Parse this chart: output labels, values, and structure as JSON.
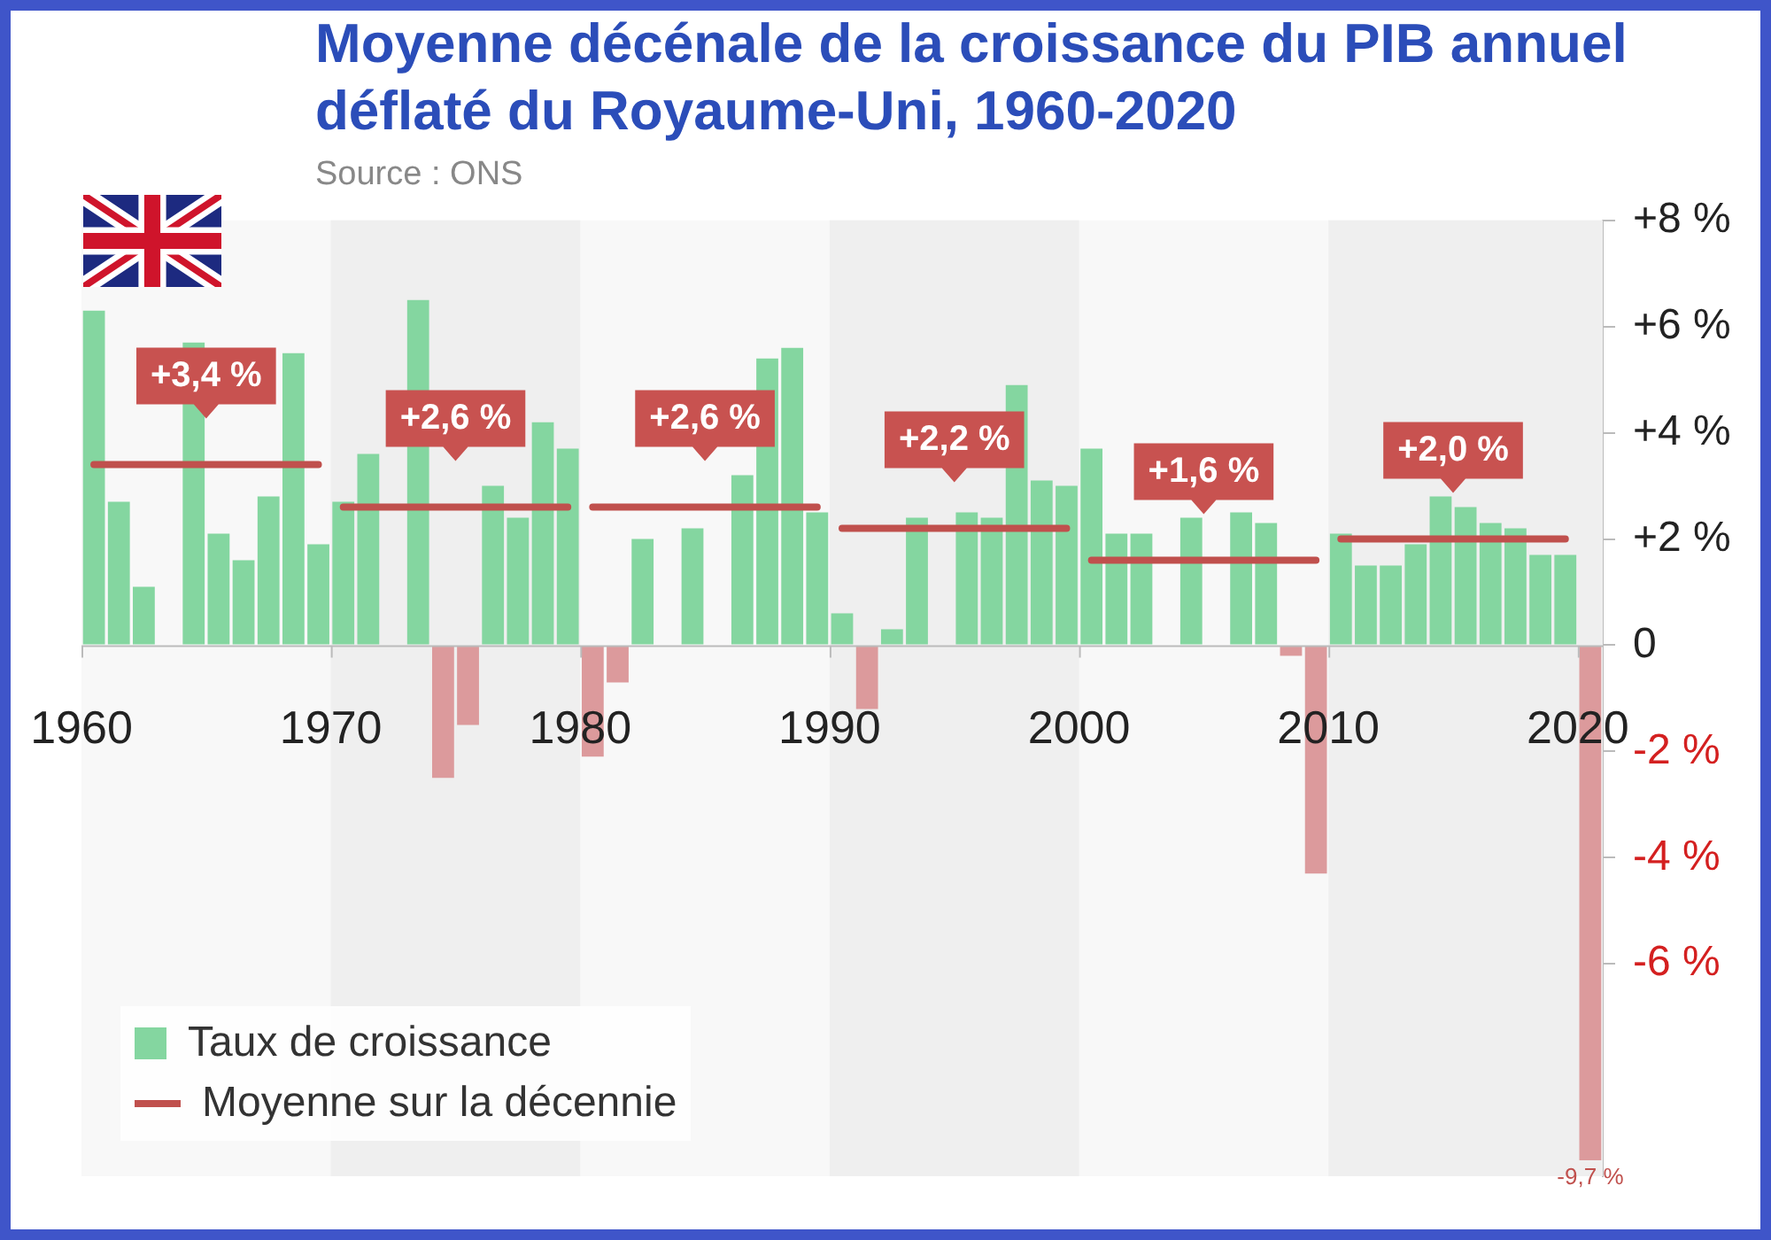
{
  "chart_data": {
    "type": "bar",
    "title": "Moyenne décénale de la croissance du PIB annuel déflaté du Royaume-Uni, 1960-2020",
    "annotations": [
      "Source : ONS",
      {
        "text": "+3,4 %",
        "x": 1964.5,
        "y": 3.4
      },
      {
        "text": "+2,6 %",
        "x": 1974.5,
        "y": 2.6
      },
      {
        "text": "+2,6 %",
        "x": 1984.5,
        "y": 2.6
      },
      {
        "text": "+2,2 %",
        "x": 1994.5,
        "y": 2.2
      },
      {
        "text": "+1,6 %",
        "x": 2004.5,
        "y": 1.6
      },
      {
        "text": "+2,0 %",
        "x": 2014.5,
        "y": 2.0
      }
    ],
    "x": [
      1960,
      1961,
      1962,
      1963,
      1964,
      1965,
      1966,
      1967,
      1968,
      1969,
      1970,
      1971,
      1972,
      1973,
      1974,
      1975,
      1976,
      1977,
      1978,
      1979,
      1980,
      1981,
      1982,
      1983,
      1984,
      1985,
      1986,
      1987,
      1988,
      1989,
      1990,
      1991,
      1992,
      1993,
      1994,
      1995,
      1996,
      1997,
      1998,
      1999,
      2000,
      2001,
      2002,
      2003,
      2004,
      2005,
      2006,
      2007,
      2008,
      2009,
      2010,
      2011,
      2012,
      2013,
      2014,
      2015,
      2016,
      2017,
      2018,
      2019,
      2020
    ],
    "xlim": [
      1959.5,
      2020.5
    ],
    "xticks": [
      {
        "value": 1959.5,
        "label": "1960"
      },
      {
        "value": 1969.5,
        "label": "1970"
      },
      {
        "value": 1979.5,
        "label": "1980"
      },
      {
        "value": 1989.5,
        "label": "1990"
      },
      {
        "value": 1999.5,
        "label": "2000"
      },
      {
        "value": 2009.5,
        "label": "2010"
      },
      {
        "value": 2019.5,
        "label": "2020"
      }
    ],
    "ylim": [
      -10,
      8
    ],
    "yticks": [
      {
        "value": -6,
        "label": "-6 %"
      },
      {
        "value": -4,
        "label": "-4 %"
      },
      {
        "value": -2,
        "label": "-2 %"
      },
      0,
      {
        "value": 2,
        "label": "+2 %"
      },
      {
        "value": 4,
        "label": "+4 %"
      },
      {
        "value": 6,
        "label": "+6 %"
      },
      {
        "value": 8,
        "label": "+8 %"
      }
    ],
    "bands": [
      {
        "axis": "x",
        "from": 1969.5,
        "to": 1979.5,
        "color": "#efefef"
      },
      {
        "axis": "x",
        "from": 1989.5,
        "to": 1999.5,
        "color": "#efefef"
      },
      {
        "axis": "x",
        "from": 2009.5,
        "to": 2020.5,
        "color": "#efefef"
      }
    ],
    "legend": "bottom left",
    "grid": false,
    "series": [
      {
        "name": "Taux de croissance",
        "color": "#84d6a0",
        "colors": [
          "#84d6a0",
          "#84d6a0",
          "#84d6a0",
          "#84d6a0",
          "#84d6a0",
          "#84d6a0",
          "#84d6a0",
          "#84d6a0",
          "#84d6a0",
          "#84d6a0",
          "#84d6a0",
          "#84d6a0",
          "#84d6a0",
          "#84d6a0",
          "#dc9a9c",
          "#dc9a9c",
          "#84d6a0",
          "#84d6a0",
          "#84d6a0",
          "#84d6a0",
          "#dc9a9c",
          "#dc9a9c",
          "#84d6a0",
          "#84d6a0",
          "#84d6a0",
          "#84d6a0",
          "#84d6a0",
          "#84d6a0",
          "#84d6a0",
          "#84d6a0",
          "#84d6a0",
          "#dc9a9c",
          "#84d6a0",
          "#84d6a0",
          "#84d6a0",
          "#84d6a0",
          "#84d6a0",
          "#84d6a0",
          "#84d6a0",
          "#84d6a0",
          "#84d6a0",
          "#84d6a0",
          "#84d6a0",
          "#84d6a0",
          "#84d6a0",
          "#84d6a0",
          "#84d6a0",
          "#84d6a0",
          "#dc9a9c",
          "#dc9a9c",
          "#84d6a0",
          "#84d6a0",
          "#84d6a0",
          "#84d6a0",
          "#84d6a0",
          "#84d6a0",
          "#84d6a0",
          "#84d6a0",
          "#84d6a0",
          "#84d6a0",
          "#dc9a9c"
        ],
        "values": [
          6.3,
          2.7,
          1.1,
          null,
          5.7,
          2.1,
          1.6,
          2.8,
          5.5,
          1.9,
          2.7,
          3.6,
          null,
          6.5,
          -2.5,
          -1.5,
          3.0,
          2.4,
          4.2,
          3.7,
          -2.1,
          -0.7,
          2.0,
          null,
          2.2,
          null,
          3.2,
          5.4,
          5.6,
          2.5,
          0.6,
          -1.2,
          0.3,
          2.4,
          null,
          2.5,
          2.4,
          4.9,
          3.1,
          3.0,
          3.7,
          2.1,
          2.1,
          null,
          2.4,
          null,
          2.5,
          2.3,
          -0.2,
          -4.3,
          2.1,
          1.5,
          1.5,
          1.9,
          2.8,
          2.6,
          2.3,
          2.2,
          1.7,
          1.7,
          -9.7
        ],
        "value_labels": [
          null,
          null,
          null,
          null,
          null,
          null,
          null,
          null,
          null,
          null,
          null,
          null,
          null,
          null,
          null,
          null,
          null,
          null,
          null,
          null,
          null,
          null,
          null,
          null,
          null,
          null,
          null,
          null,
          null,
          null,
          null,
          null,
          null,
          null,
          null,
          null,
          null,
          null,
          null,
          null,
          null,
          null,
          null,
          null,
          null,
          null,
          null,
          null,
          null,
          null,
          null,
          null,
          null,
          null,
          null,
          null,
          null,
          null,
          null,
          null,
          "-9,7 %"
        ]
      },
      {
        "name": "Moyenne sur la décennie",
        "type": "line",
        "color": "#c0504d",
        "x": [
          1960,
          1969,
          1969.5,
          1970,
          1979,
          1979.5,
          1980,
          1989,
          1989.5,
          1990,
          1999,
          1999.5,
          2000,
          2009,
          2009.5,
          2010,
          2019
        ],
        "values": [
          3.4,
          3.4,
          null,
          2.6,
          2.6,
          null,
          2.6,
          2.6,
          null,
          2.2,
          2.2,
          null,
          1.6,
          1.6,
          null,
          2.0,
          2.0
        ]
      }
    ]
  }
}
